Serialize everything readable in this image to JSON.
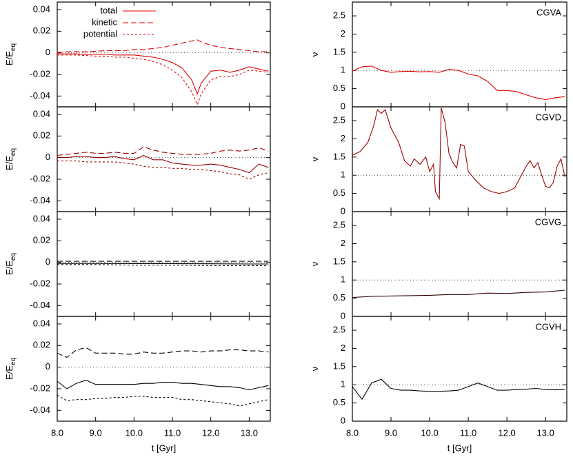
{
  "chart_data": [
    {
      "type": "line",
      "panel": "CGVA",
      "ylabel": {
        "text": "E/E",
        "sub": "eq"
      },
      "legend": "top-left",
      "refline": 0,
      "xlim": [
        8,
        13.55
      ],
      "xticks": [
        8,
        9,
        10,
        11,
        12,
        13
      ],
      "ylim": [
        -0.05,
        0.047
      ],
      "yticks": [
        0.04,
        0.02,
        0,
        -0.02,
        -0.04
      ],
      "x": [
        8,
        8.25,
        8.5,
        8.75,
        9,
        9.25,
        9.5,
        9.75,
        10,
        10.25,
        10.5,
        10.75,
        11,
        11.25,
        11.5,
        11.65,
        11.75,
        12,
        12.25,
        12.5,
        12.75,
        13,
        13.25,
        13.5
      ],
      "series": [
        {
          "name": "total",
          "color": "#e00000",
          "style": "solid",
          "values": [
            -0.001,
            -0.001,
            -0.001,
            -0.0015,
            -0.0015,
            -0.0015,
            -0.002,
            -0.002,
            -0.002,
            -0.003,
            -0.004,
            -0.006,
            -0.009,
            -0.014,
            -0.025,
            -0.038,
            -0.028,
            -0.017,
            -0.016,
            -0.018,
            -0.016,
            -0.013,
            -0.015,
            -0.017
          ]
        },
        {
          "name": "kinetic",
          "color": "#e00000",
          "style": "dashed",
          "values": [
            0.0005,
            0.001,
            0.001,
            0.001,
            0.0015,
            0.002,
            0.002,
            0.002,
            0.003,
            0.003,
            0.004,
            0.005,
            0.007,
            0.009,
            0.011,
            0.012,
            0.01,
            0.007,
            0.005,
            0.004,
            0.003,
            0.002,
            0.001,
            0.001
          ]
        },
        {
          "name": "potential",
          "color": "#e00000",
          "style": "dotted",
          "values": [
            -0.002,
            -0.002,
            -0.002,
            -0.0025,
            -0.003,
            -0.003,
            -0.004,
            -0.004,
            -0.005,
            -0.006,
            -0.008,
            -0.011,
            -0.016,
            -0.023,
            -0.036,
            -0.048,
            -0.038,
            -0.025,
            -0.022,
            -0.022,
            -0.02,
            -0.016,
            -0.017,
            -0.018
          ]
        }
      ]
    },
    {
      "type": "line",
      "ylabel": {
        "text": "E/E",
        "sub": "eq"
      },
      "refline": 0,
      "xlim": [
        8,
        13.55
      ],
      "xticks": [
        8,
        9,
        10,
        11,
        12,
        13
      ],
      "ylim": [
        -0.05,
        0.047
      ],
      "yticks": [
        0.04,
        0.02,
        0,
        -0.02,
        -0.04
      ],
      "x": [
        8,
        8.25,
        8.5,
        8.75,
        9,
        9.25,
        9.5,
        9.75,
        10,
        10.25,
        10.5,
        10.75,
        11,
        11.25,
        11.5,
        11.75,
        12,
        12.25,
        12.5,
        12.75,
        13,
        13.25,
        13.5
      ],
      "series": [
        {
          "color": "#9a0000",
          "style": "solid",
          "values": [
            0,
            0,
            0.001,
            0.001,
            0,
            0,
            0.001,
            -0.001,
            -0.002,
            0.002,
            -0.002,
            -0.002,
            -0.005,
            -0.006,
            -0.007,
            -0.007,
            -0.006,
            -0.007,
            -0.009,
            -0.011,
            -0.014,
            -0.006,
            -0.009
          ]
        },
        {
          "color": "#9a0000",
          "style": "dashed",
          "values": [
            0.002,
            0.003,
            0.004,
            0.005,
            0.004,
            0.004,
            0.005,
            0.004,
            0.004,
            0.01,
            0.007,
            0.005,
            0.004,
            0.003,
            0.003,
            0.003,
            0.004,
            0.006,
            0.007,
            0.006,
            0.007,
            0.009,
            0.006
          ]
        },
        {
          "color": "#9a0000",
          "style": "dotted",
          "values": [
            -0.003,
            -0.003,
            -0.003,
            -0.004,
            -0.004,
            -0.004,
            -0.004,
            -0.005,
            -0.006,
            -0.008,
            -0.009,
            -0.009,
            -0.01,
            -0.01,
            -0.011,
            -0.011,
            -0.012,
            -0.013,
            -0.015,
            -0.016,
            -0.02,
            -0.016,
            -0.014
          ]
        }
      ]
    },
    {
      "type": "line",
      "ylabel": {
        "text": "E/E",
        "sub": "eq"
      },
      "refline": 0,
      "xlim": [
        8,
        13.55
      ],
      "xticks": [
        8,
        9,
        10,
        11,
        12,
        13
      ],
      "ylim": [
        -0.05,
        0.047
      ],
      "yticks": [
        0.04,
        0.02,
        0,
        -0.02,
        -0.04
      ],
      "x": [
        8,
        9,
        10,
        11,
        12,
        13,
        13.5
      ],
      "series": [
        {
          "color": "#000000",
          "style": "solid",
          "values": [
            -0.001,
            -0.001,
            -0.0012,
            -0.0012,
            -0.0013,
            -0.0015,
            -0.0015
          ]
        },
        {
          "color": "#000000",
          "style": "dashed",
          "values": [
            0.001,
            0.001,
            0.001,
            0.001,
            0.001,
            0.001,
            0.001
          ]
        },
        {
          "color": "#000000",
          "style": "dotted",
          "values": [
            -0.002,
            -0.002,
            -0.0025,
            -0.0025,
            -0.003,
            -0.003,
            -0.003
          ]
        }
      ]
    },
    {
      "type": "line",
      "ylabel": {
        "text": "E/E",
        "sub": "eq"
      },
      "refline": 0,
      "xlabel": "t [Gyr]",
      "xlim": [
        8,
        13.55
      ],
      "xticks": [
        {
          "value": 8,
          "label": "8.0"
        },
        {
          "value": 9,
          "label": "9.0"
        },
        {
          "value": 10,
          "label": "10.0"
        },
        {
          "value": 11,
          "label": "11.0"
        },
        {
          "value": 12,
          "label": "12.0"
        },
        {
          "value": 13,
          "label": "13.0"
        }
      ],
      "ylim": [
        -0.05,
        0.047
      ],
      "yticks": [
        0.04,
        0.02,
        0,
        -0.02,
        -0.04
      ],
      "x": [
        8,
        8.25,
        8.5,
        8.75,
        9,
        9.25,
        9.5,
        9.75,
        10,
        10.25,
        10.5,
        10.75,
        11,
        11.25,
        11.5,
        11.75,
        12,
        12.25,
        12.5,
        12.75,
        13,
        13.25,
        13.5
      ],
      "series": [
        {
          "color": "#000000",
          "style": "solid",
          "values": [
            -0.013,
            -0.02,
            -0.015,
            -0.012,
            -0.016,
            -0.016,
            -0.016,
            -0.016,
            -0.016,
            -0.015,
            -0.015,
            -0.014,
            -0.014,
            -0.015,
            -0.015,
            -0.016,
            -0.017,
            -0.018,
            -0.018,
            -0.019,
            -0.021,
            -0.019,
            -0.017
          ]
        },
        {
          "color": "#000000",
          "style": "dashed",
          "values": [
            0.013,
            0.009,
            0.016,
            0.018,
            0.013,
            0.013,
            0.013,
            0.012,
            0.012,
            0.014,
            0.013,
            0.013,
            0.014,
            0.015,
            0.015,
            0.014,
            0.015,
            0.015,
            0.016,
            0.016,
            0.015,
            0.015,
            0.014
          ]
        },
        {
          "color": "#000000",
          "style": "dotted",
          "values": [
            -0.026,
            -0.031,
            -0.03,
            -0.03,
            -0.029,
            -0.029,
            -0.028,
            -0.028,
            -0.027,
            -0.027,
            -0.028,
            -0.028,
            -0.028,
            -0.03,
            -0.03,
            -0.031,
            -0.032,
            -0.033,
            -0.034,
            -0.036,
            -0.034,
            -0.032,
            -0.03
          ]
        }
      ]
    },
    {
      "type": "line",
      "panel": "CGVA",
      "ylabel": {
        "text": "ν"
      },
      "refline": 1,
      "xlim": [
        8,
        13.55
      ],
      "xticks": [
        8,
        9,
        10,
        11,
        12,
        13
      ],
      "ylim": [
        0,
        2.88
      ],
      "yticks": [
        0,
        0.5,
        1,
        1.5,
        2,
        2.5
      ],
      "x": [
        8,
        8.25,
        8.5,
        8.75,
        9,
        9.25,
        9.5,
        9.75,
        10,
        10.25,
        10.5,
        10.75,
        11,
        11.25,
        11.5,
        11.75,
        12,
        12.25,
        12.5,
        12.75,
        13,
        13.25,
        13.5
      ],
      "series": [
        {
          "color": "#e00000",
          "style": "solid",
          "values": [
            0.98,
            1.1,
            1.12,
            1.0,
            0.95,
            0.97,
            0.98,
            0.96,
            0.97,
            0.95,
            1.03,
            1.0,
            0.9,
            0.85,
            0.7,
            0.45,
            0.45,
            0.42,
            0.33,
            0.25,
            0.2,
            0.25,
            0.28
          ]
        }
      ]
    },
    {
      "type": "line",
      "panel": "CGVD",
      "ylabel": {
        "text": "ν"
      },
      "refline": 1,
      "xlim": [
        8,
        13.55
      ],
      "xticks": [
        8,
        9,
        10,
        11,
        12,
        13
      ],
      "ylim": [
        0,
        2.88
      ],
      "yticks": [
        0,
        0.5,
        1,
        1.5,
        2,
        2.5
      ],
      "x": [
        8,
        8.2,
        8.4,
        8.55,
        8.65,
        8.75,
        8.85,
        9.0,
        9.2,
        9.35,
        9.5,
        9.6,
        9.75,
        9.9,
        10.0,
        10.1,
        10.15,
        10.25,
        10.3,
        10.4,
        10.5,
        10.6,
        10.7,
        10.8,
        10.9,
        11.0,
        11.2,
        11.4,
        11.6,
        11.8,
        12.0,
        12.2,
        12.3,
        12.4,
        12.5,
        12.6,
        12.7,
        12.8,
        12.9,
        13.0,
        13.1,
        13.2,
        13.3,
        13.4,
        13.5
      ],
      "series": [
        {
          "color": "#9a0000",
          "style": "solid",
          "values": [
            1.55,
            1.65,
            1.9,
            2.35,
            2.8,
            2.7,
            2.8,
            2.3,
            1.9,
            1.4,
            1.25,
            1.45,
            1.3,
            1.5,
            1.1,
            1.3,
            0.55,
            0.35,
            2.85,
            2.45,
            1.6,
            1.35,
            1.2,
            1.85,
            1.8,
            1.1,
            0.85,
            0.65,
            0.55,
            0.5,
            0.55,
            0.65,
            0.85,
            1.05,
            1.25,
            1.4,
            1.2,
            1.35,
            1.0,
            0.7,
            0.65,
            0.8,
            1.25,
            1.45,
            0.95
          ]
        }
      ]
    },
    {
      "type": "line",
      "panel": "CGVG",
      "ylabel": {
        "text": "ν"
      },
      "refline": 1,
      "xlim": [
        8,
        13.55
      ],
      "xticks": [
        8,
        9,
        10,
        11,
        12,
        13
      ],
      "ylim": [
        0,
        2.88
      ],
      "yticks": [
        0,
        0.5,
        1,
        1.5,
        2,
        2.5
      ],
      "x": [
        8,
        8.5,
        9,
        9.5,
        10,
        10.5,
        11,
        11.5,
        12,
        12.5,
        13,
        13.5
      ],
      "series": [
        {
          "color": "#300000",
          "style": "solid",
          "values": [
            0.52,
            0.55,
            0.56,
            0.57,
            0.58,
            0.6,
            0.6,
            0.64,
            0.63,
            0.66,
            0.67,
            0.72
          ]
        }
      ]
    },
    {
      "type": "line",
      "panel": "CGVH",
      "ylabel": {
        "text": "ν"
      },
      "refline": 1,
      "xlabel": "t [Gyr]",
      "xlim": [
        8,
        13.55
      ],
      "xticks": [
        {
          "value": 8,
          "label": "8.0"
        },
        {
          "value": 9,
          "label": "9.0"
        },
        {
          "value": 10,
          "label": "10.0"
        },
        {
          "value": 11,
          "label": "11.0"
        },
        {
          "value": 12,
          "label": "12.0"
        },
        {
          "value": 13,
          "label": "13.0"
        }
      ],
      "ylim": [
        0,
        2.88
      ],
      "yticks": [
        0,
        0.5,
        1,
        1.5,
        2,
        2.5
      ],
      "x": [
        8,
        8.25,
        8.5,
        8.75,
        9,
        9.25,
        9.5,
        9.75,
        10,
        10.25,
        10.5,
        10.75,
        11,
        11.25,
        11.5,
        11.75,
        12,
        12.25,
        12.5,
        12.75,
        13,
        13.25,
        13.5
      ],
      "series": [
        {
          "color": "#000000",
          "style": "solid",
          "values": [
            0.95,
            0.6,
            1.05,
            1.15,
            0.9,
            0.85,
            0.85,
            0.83,
            0.82,
            0.82,
            0.83,
            0.85,
            0.95,
            1.05,
            0.95,
            0.85,
            0.85,
            0.87,
            0.88,
            0.9,
            0.87,
            0.86,
            0.87
          ]
        }
      ]
    }
  ]
}
